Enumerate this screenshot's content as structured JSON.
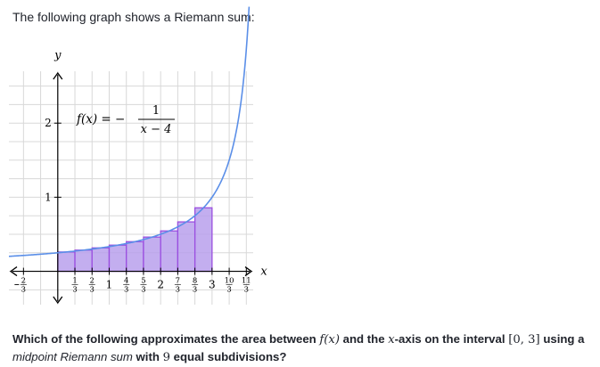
{
  "intro_text": "The following graph shows a Riemann sum:",
  "question": {
    "part1": "Which of the following approximates the area between ",
    "f_of_x": "f(x)",
    "part2": " and the ",
    "x_var": "x",
    "part3": "-axis on the interval ",
    "interval": "[0, 3]",
    "part4": " using a",
    "midpoint_phrase": "midpoint Riemann sum",
    "part5": " with ",
    "nine": "9",
    "part6": " equal subdivisions?"
  },
  "colors": {
    "grid": "#d8d8d8",
    "axis": "#000000",
    "curve": "#5b8fe8",
    "bar_fill": "#b9a0ec",
    "bar_stroke": "#9b4fe0"
  },
  "chart_data": {
    "type": "bar",
    "function_label": {
      "lhs": "f(x) = −",
      "numerator": "1",
      "denominator": "x − 4"
    },
    "axis_labels": {
      "x": "x",
      "y": "y"
    },
    "xlim": [
      -0.95,
      3.8
    ],
    "ylim": [
      -0.45,
      2.7
    ],
    "grid": true,
    "x_ticks": [
      {
        "value": -0.6667,
        "num": "2",
        "den": "3",
        "neg": true
      },
      {
        "value": 0.3333,
        "num": "1",
        "den": "3"
      },
      {
        "value": 0.6667,
        "num": "2",
        "den": "3"
      },
      {
        "value": 1,
        "text": "1"
      },
      {
        "value": 1.3333,
        "num": "4",
        "den": "3"
      },
      {
        "value": 1.6667,
        "num": "5",
        "den": "3"
      },
      {
        "value": 2,
        "text": "2"
      },
      {
        "value": 2.3333,
        "num": "7",
        "den": "3"
      },
      {
        "value": 2.6667,
        "num": "8",
        "den": "3"
      },
      {
        "value": 3,
        "text": "3"
      },
      {
        "value": 3.3333,
        "num": "10",
        "den": "3"
      },
      {
        "value": 3.6667,
        "num": "11",
        "den": "3"
      }
    ],
    "y_ticks": [
      {
        "value": 1,
        "text": "1"
      },
      {
        "value": 2,
        "text": "2"
      }
    ],
    "curve": {
      "expression": "-1/(x-4)",
      "x_from": -0.95,
      "x_to": 3.72
    },
    "bars": {
      "x_left": [
        0,
        0.3333,
        0.6667,
        1,
        1.3333,
        1.6667,
        2,
        2.3333,
        2.6667
      ],
      "width": 0.3333,
      "heights": [
        0.261,
        0.286,
        0.316,
        0.353,
        0.4,
        0.462,
        0.545,
        0.667,
        0.857
      ]
    }
  }
}
